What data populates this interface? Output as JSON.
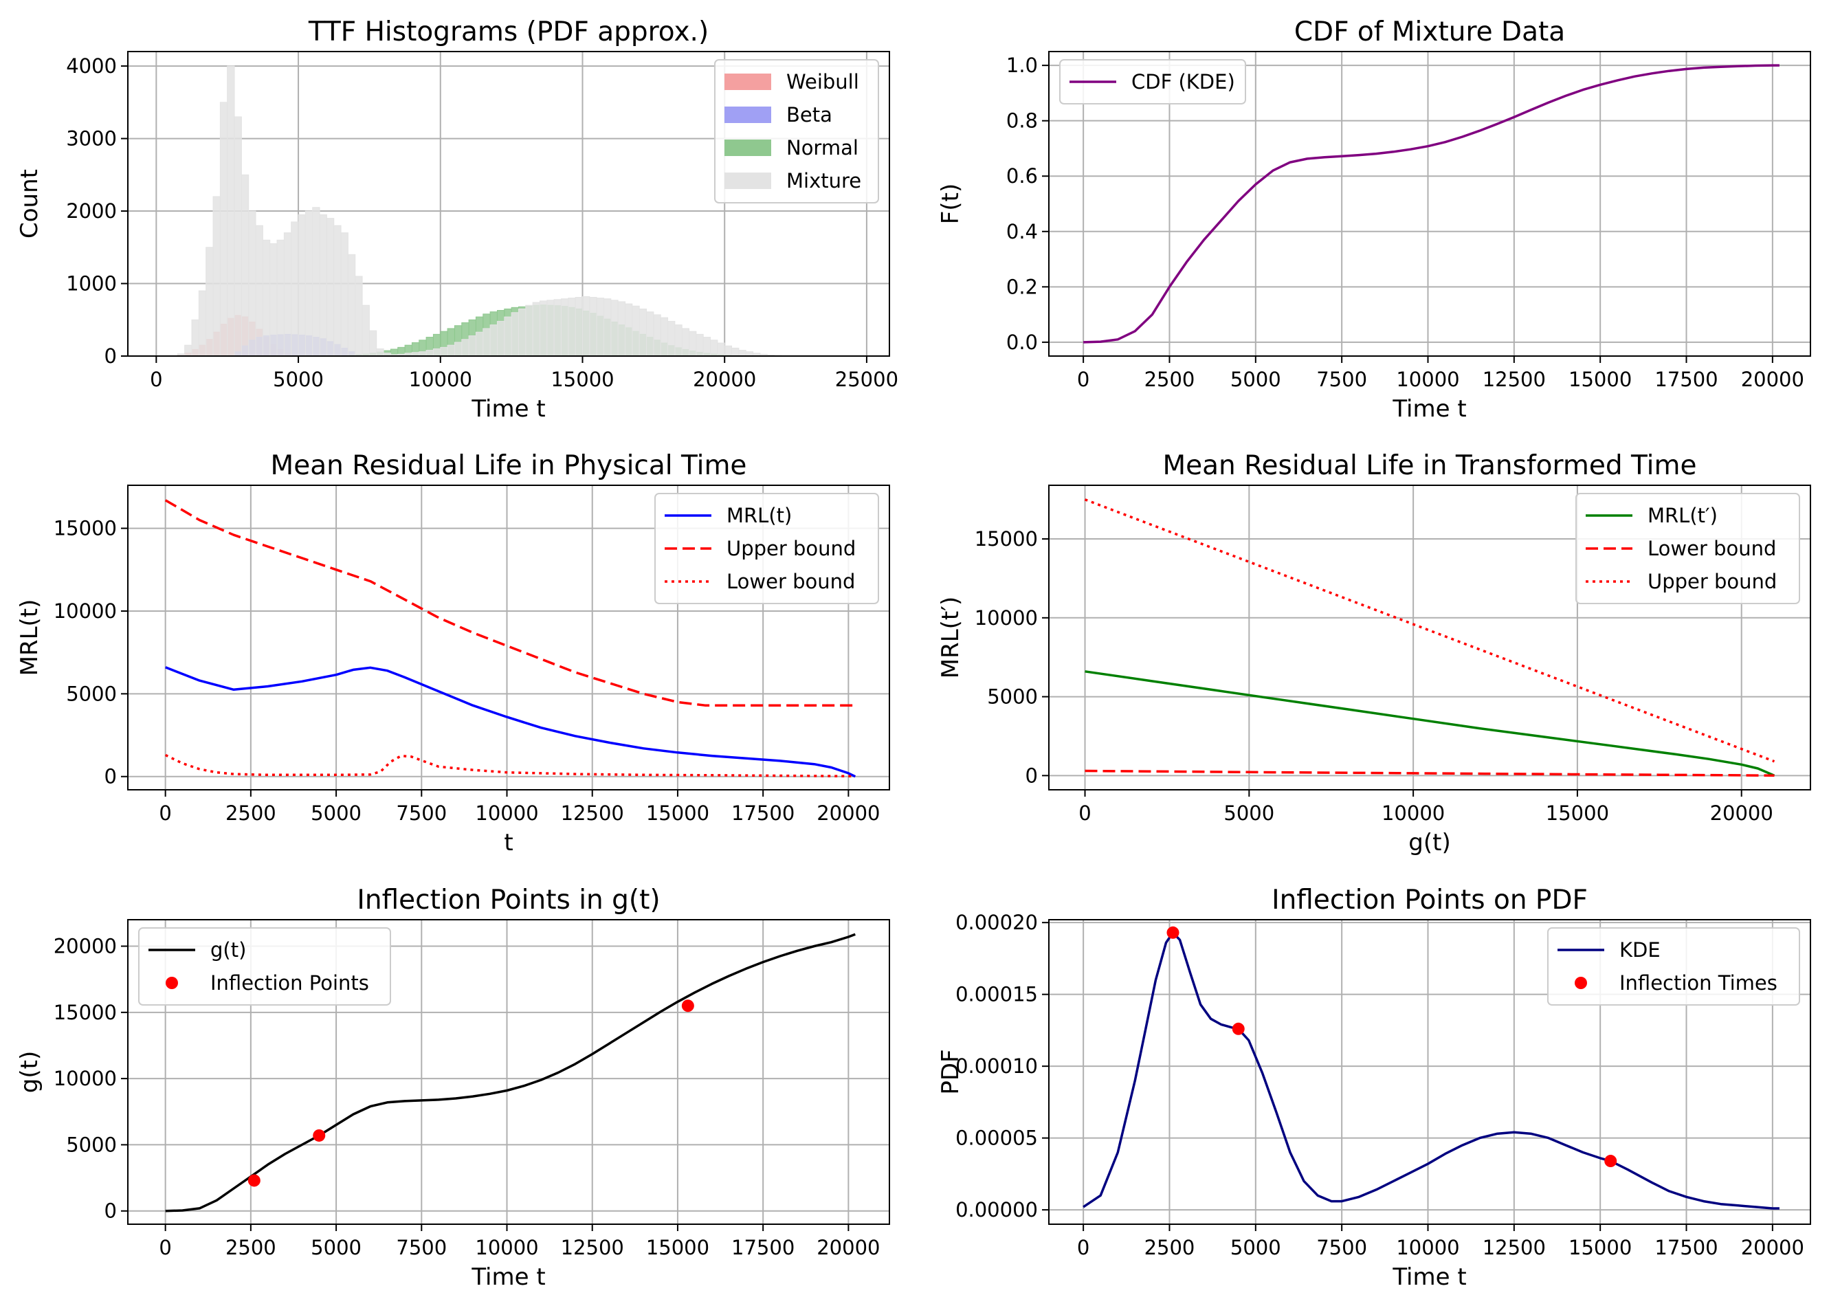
{
  "chart_data": [
    {
      "type": "bar",
      "title": "TTF Histograms (PDF approx.)",
      "xlabel": "Time t",
      "ylabel": "Count",
      "xlim": [
        -1000,
        25800
      ],
      "ylim": [
        0,
        4200
      ],
      "xticks": [
        "0",
        "5000",
        "10000",
        "15000",
        "20000",
        "25000"
      ],
      "yticks": [
        "0",
        "1000",
        "2000",
        "3000",
        "4000"
      ],
      "grid": true,
      "legend_position": "top-right",
      "bin_width": 250,
      "series": [
        {
          "name": "Weibull",
          "color": "#f4a0a0",
          "x_start": 750,
          "values": [
            10,
            40,
            90,
            150,
            230,
            330,
            440,
            520,
            560,
            540,
            470,
            370,
            260,
            160,
            90,
            40,
            15,
            5
          ]
        },
        {
          "name": "Beta",
          "color": "#a0a0f4",
          "x_start": 2750,
          "values": [
            60,
            140,
            220,
            260,
            280,
            290,
            295,
            300,
            295,
            290,
            280,
            260,
            240,
            200,
            160,
            110,
            60,
            20
          ]
        },
        {
          "name": "Normal",
          "color": "#8fc88f",
          "x_start": 6500,
          "values": [
            5,
            10,
            18,
            28,
            40,
            55,
            75,
            95,
            120,
            150,
            185,
            220,
            260,
            300,
            340,
            380,
            420,
            460,
            500,
            540,
            580,
            610,
            630,
            650,
            670,
            680,
            690,
            700,
            705,
            700,
            695,
            685,
            670,
            650,
            620,
            590,
            550,
            510,
            470,
            430,
            390,
            340,
            300,
            260,
            220,
            180,
            145,
            115,
            90,
            70,
            52,
            38,
            27,
            18,
            12,
            7,
            4,
            2
          ]
        },
        {
          "name": "Mixture",
          "color": "#e3e3e3",
          "x_start": 750,
          "values": [
            30,
            150,
            500,
            900,
            1500,
            2200,
            3500,
            4000,
            3300,
            2500,
            2000,
            1800,
            1600,
            1550,
            1600,
            1700,
            1850,
            1950,
            2000,
            2050,
            1950,
            1900,
            1800,
            1700,
            1400,
            1100,
            700,
            350,
            100,
            40,
            20,
            25,
            40,
            50,
            60,
            80,
            100,
            120,
            150,
            190,
            230,
            280,
            330,
            380,
            430,
            480,
            540,
            600,
            650,
            700,
            740,
            760,
            770,
            780,
            790,
            800,
            810,
            820,
            810,
            800,
            790,
            770,
            750,
            720,
            690,
            650,
            610,
            570,
            530,
            480,
            430,
            380,
            340,
            300,
            260,
            220,
            180,
            140,
            110,
            80,
            60,
            40,
            25,
            15,
            8,
            4
          ]
        }
      ]
    },
    {
      "type": "line",
      "title": "CDF of Mixture Data",
      "xlabel": "Time t",
      "ylabel": "F(t)",
      "xlim": [
        -1000,
        21100
      ],
      "ylim": [
        -0.05,
        1.05
      ],
      "xticks": [
        "0",
        "2500",
        "5000",
        "7500",
        "10000",
        "12500",
        "15000",
        "17500",
        "20000"
      ],
      "yticks": [
        "0.0",
        "0.2",
        "0.4",
        "0.6",
        "0.8",
        "1.0"
      ],
      "grid": true,
      "legend_position": "top-left",
      "series": [
        {
          "name": "CDF (KDE)",
          "color": "#800080",
          "style": "solid",
          "x": [
            0,
            500,
            1000,
            1500,
            2000,
            2500,
            3000,
            3500,
            4000,
            4500,
            5000,
            5500,
            6000,
            6500,
            7000,
            7500,
            8000,
            8500,
            9000,
            9500,
            10000,
            10500,
            11000,
            11500,
            12000,
            12500,
            13000,
            13500,
            14000,
            14500,
            15000,
            15500,
            16000,
            16500,
            17000,
            17500,
            18000,
            18500,
            19000,
            19500,
            20000,
            20200
          ],
          "y": [
            0.0,
            0.002,
            0.01,
            0.04,
            0.1,
            0.2,
            0.29,
            0.37,
            0.44,
            0.51,
            0.57,
            0.62,
            0.65,
            0.663,
            0.668,
            0.672,
            0.676,
            0.681,
            0.688,
            0.697,
            0.708,
            0.723,
            0.742,
            0.764,
            0.788,
            0.813,
            0.84,
            0.866,
            0.89,
            0.912,
            0.93,
            0.946,
            0.96,
            0.971,
            0.98,
            0.987,
            0.992,
            0.995,
            0.997,
            0.999,
            1.0,
            1.0
          ]
        }
      ]
    },
    {
      "type": "line",
      "title": "Mean Residual Life in Physical Time",
      "xlabel": "t",
      "ylabel": "MRL(t)",
      "xlim": [
        -1100,
        21200
      ],
      "ylim": [
        -800,
        17600
      ],
      "xticks": [
        "0",
        "2500",
        "5000",
        "7500",
        "10000",
        "12500",
        "15000",
        "17500",
        "20000"
      ],
      "yticks": [
        "0",
        "5000",
        "10000",
        "15000"
      ],
      "grid": true,
      "legend_position": "top-right",
      "series": [
        {
          "name": "MRL(t)",
          "color": "#0000ff",
          "style": "solid",
          "x": [
            0,
            1000,
            2000,
            3000,
            4000,
            5000,
            5500,
            6000,
            6500,
            7000,
            8000,
            9000,
            10000,
            11000,
            12000,
            13000,
            14000,
            15000,
            16000,
            17000,
            18000,
            19000,
            19500,
            20000,
            20200
          ],
          "y": [
            6600,
            5800,
            5250,
            5450,
            5750,
            6150,
            6450,
            6580,
            6400,
            6000,
            5150,
            4300,
            3600,
            2950,
            2450,
            2050,
            1700,
            1450,
            1250,
            1100,
            950,
            750,
            550,
            200,
            0
          ]
        },
        {
          "name": "Upper bound",
          "color": "#ff0000",
          "style": "dashed",
          "x": [
            0,
            1000,
            2000,
            3000,
            4000,
            5000,
            6000,
            7000,
            8000,
            9000,
            10000,
            11000,
            12000,
            13000,
            14000,
            15000,
            15800,
            16500,
            17500,
            18500,
            19500,
            20200
          ],
          "y": [
            16700,
            15500,
            14600,
            13900,
            13200,
            12500,
            11800,
            10700,
            9600,
            8700,
            7900,
            7100,
            6300,
            5650,
            5000,
            4500,
            4300,
            4300,
            4300,
            4300,
            4300,
            4300
          ]
        },
        {
          "name": "Lower bound",
          "color": "#ff0000",
          "style": "dotted",
          "x": [
            0,
            500,
            1000,
            1500,
            2000,
            3000,
            4000,
            5000,
            6000,
            6300,
            6600,
            6900,
            7200,
            7600,
            8000,
            9000,
            10000,
            12000,
            14000,
            16000,
            18000,
            20200
          ],
          "y": [
            1300,
            800,
            450,
            250,
            150,
            100,
            100,
            100,
            120,
            300,
            900,
            1250,
            1200,
            900,
            600,
            400,
            250,
            150,
            100,
            80,
            50,
            20
          ]
        }
      ]
    },
    {
      "type": "line",
      "title": "Mean Residual Life in Transformed Time",
      "xlabel": "g(t)",
      "ylabel": "MRL(t′)",
      "xlim": [
        -1100,
        22100
      ],
      "ylim": [
        -900,
        18400
      ],
      "xticks": [
        "0",
        "5000",
        "10000",
        "15000",
        "20000"
      ],
      "yticks": [
        "0",
        "5000",
        "10000",
        "15000"
      ],
      "grid": true,
      "legend_position": "top-right",
      "series": [
        {
          "name": "MRL(t′)",
          "color": "#008000",
          "style": "solid",
          "x": [
            0,
            2000,
            4000,
            6000,
            8000,
            10000,
            12000,
            14000,
            16000,
            18000,
            19000,
            20000,
            20500,
            21000
          ],
          "y": [
            6600,
            6000,
            5400,
            4800,
            4200,
            3600,
            3000,
            2450,
            1900,
            1350,
            1050,
            700,
            450,
            0
          ]
        },
        {
          "name": "Lower bound",
          "color": "#ff0000",
          "style": "dashed",
          "x": [
            0,
            5000,
            10000,
            15000,
            20000,
            21000
          ],
          "y": [
            300,
            220,
            150,
            80,
            20,
            0
          ]
        },
        {
          "name": "Upper bound",
          "color": "#ff0000",
          "style": "dotted",
          "x": [
            0,
            21000
          ],
          "y": [
            17500,
            900
          ]
        }
      ]
    },
    {
      "type": "line",
      "title": "Inflection Points in g(t)",
      "xlabel": "Time t",
      "ylabel": "g(t)",
      "xlim": [
        -1100,
        21200
      ],
      "ylim": [
        -1000,
        22000
      ],
      "xticks": [
        "0",
        "2500",
        "5000",
        "7500",
        "10000",
        "12500",
        "15000",
        "17500",
        "20000"
      ],
      "yticks": [
        "0",
        "5000",
        "10000",
        "15000",
        "20000"
      ],
      "grid": true,
      "legend_position": "top-left",
      "series": [
        {
          "name": "g(t)",
          "color": "#000000",
          "style": "solid",
          "x": [
            0,
            500,
            1000,
            1500,
            2000,
            2500,
            3000,
            3500,
            4000,
            4500,
            5000,
            5500,
            6000,
            6500,
            7000,
            7500,
            8000,
            8500,
            9000,
            9500,
            10000,
            10500,
            11000,
            11500,
            12000,
            12500,
            13000,
            13500,
            14000,
            14500,
            15000,
            15500,
            16000,
            16500,
            17000,
            17500,
            18000,
            18500,
            19000,
            19500,
            20000,
            20200
          ],
          "y": [
            0,
            40,
            200,
            800,
            1700,
            2600,
            3500,
            4300,
            5000,
            5700,
            6500,
            7300,
            7900,
            8200,
            8300,
            8350,
            8400,
            8500,
            8650,
            8850,
            9100,
            9450,
            9900,
            10450,
            11100,
            11850,
            12650,
            13450,
            14250,
            15050,
            15800,
            16500,
            17150,
            17750,
            18300,
            18800,
            19250,
            19650,
            20000,
            20300,
            20700,
            20900
          ]
        },
        {
          "name": "Inflection Points",
          "color": "#ff0000",
          "style": "points",
          "x": [
            2600,
            4500,
            15300
          ],
          "y": [
            2300,
            5700,
            15500
          ]
        }
      ]
    },
    {
      "type": "line",
      "title": "Inflection Points on PDF",
      "xlabel": "Time t",
      "ylabel": "PDF",
      "xlim": [
        -1000,
        21100
      ],
      "ylim": [
        -1e-05,
        0.000202
      ],
      "xticks": [
        "0",
        "2500",
        "5000",
        "7500",
        "10000",
        "12500",
        "15000",
        "17500",
        "20000"
      ],
      "yticks": [
        "0.00000",
        "0.00005",
        "0.00010",
        "0.00015",
        "0.00020"
      ],
      "grid": true,
      "legend_position": "top-right",
      "series": [
        {
          "name": "KDE",
          "color": "#000080",
          "style": "solid",
          "x": [
            0,
            500,
            1000,
            1500,
            1800,
            2100,
            2400,
            2600,
            2800,
            3100,
            3400,
            3700,
            4000,
            4300,
            4500,
            4800,
            5200,
            5600,
            6000,
            6400,
            6800,
            7200,
            7500,
            8000,
            8500,
            9000,
            9500,
            10000,
            10500,
            11000,
            11500,
            12000,
            12500,
            13000,
            13500,
            14000,
            14500,
            15000,
            15300,
            15800,
            16500,
            17000,
            17500,
            18000,
            18500,
            19000,
            19500,
            20000,
            20200
          ],
          "y": [
            2e-06,
            1e-05,
            4e-05,
            9e-05,
            0.000125,
            0.00016,
            0.000186,
            0.000193,
            0.000188,
            0.000165,
            0.000143,
            0.000133,
            0.000129,
            0.000127,
            0.000126,
            0.000118,
            9.5e-05,
            6.8e-05,
            4e-05,
            2e-05,
            1e-05,
            6e-06,
            6e-06,
            9e-06,
            1.4e-05,
            2e-05,
            2.6e-05,
            3.2e-05,
            3.9e-05,
            4.5e-05,
            5e-05,
            5.3e-05,
            5.4e-05,
            5.3e-05,
            5e-05,
            4.5e-05,
            4e-05,
            3.6e-05,
            3.4e-05,
            2.8e-05,
            1.9e-05,
            1.3e-05,
            9e-06,
            6e-06,
            4e-06,
            3e-06,
            2e-06,
            1e-06,
            1e-06
          ]
        },
        {
          "name": "Inflection Times",
          "color": "#ff0000",
          "style": "points",
          "x": [
            2600,
            4500,
            15300
          ],
          "y": [
            0.000193,
            0.000126,
            3.4e-05
          ]
        }
      ]
    }
  ]
}
